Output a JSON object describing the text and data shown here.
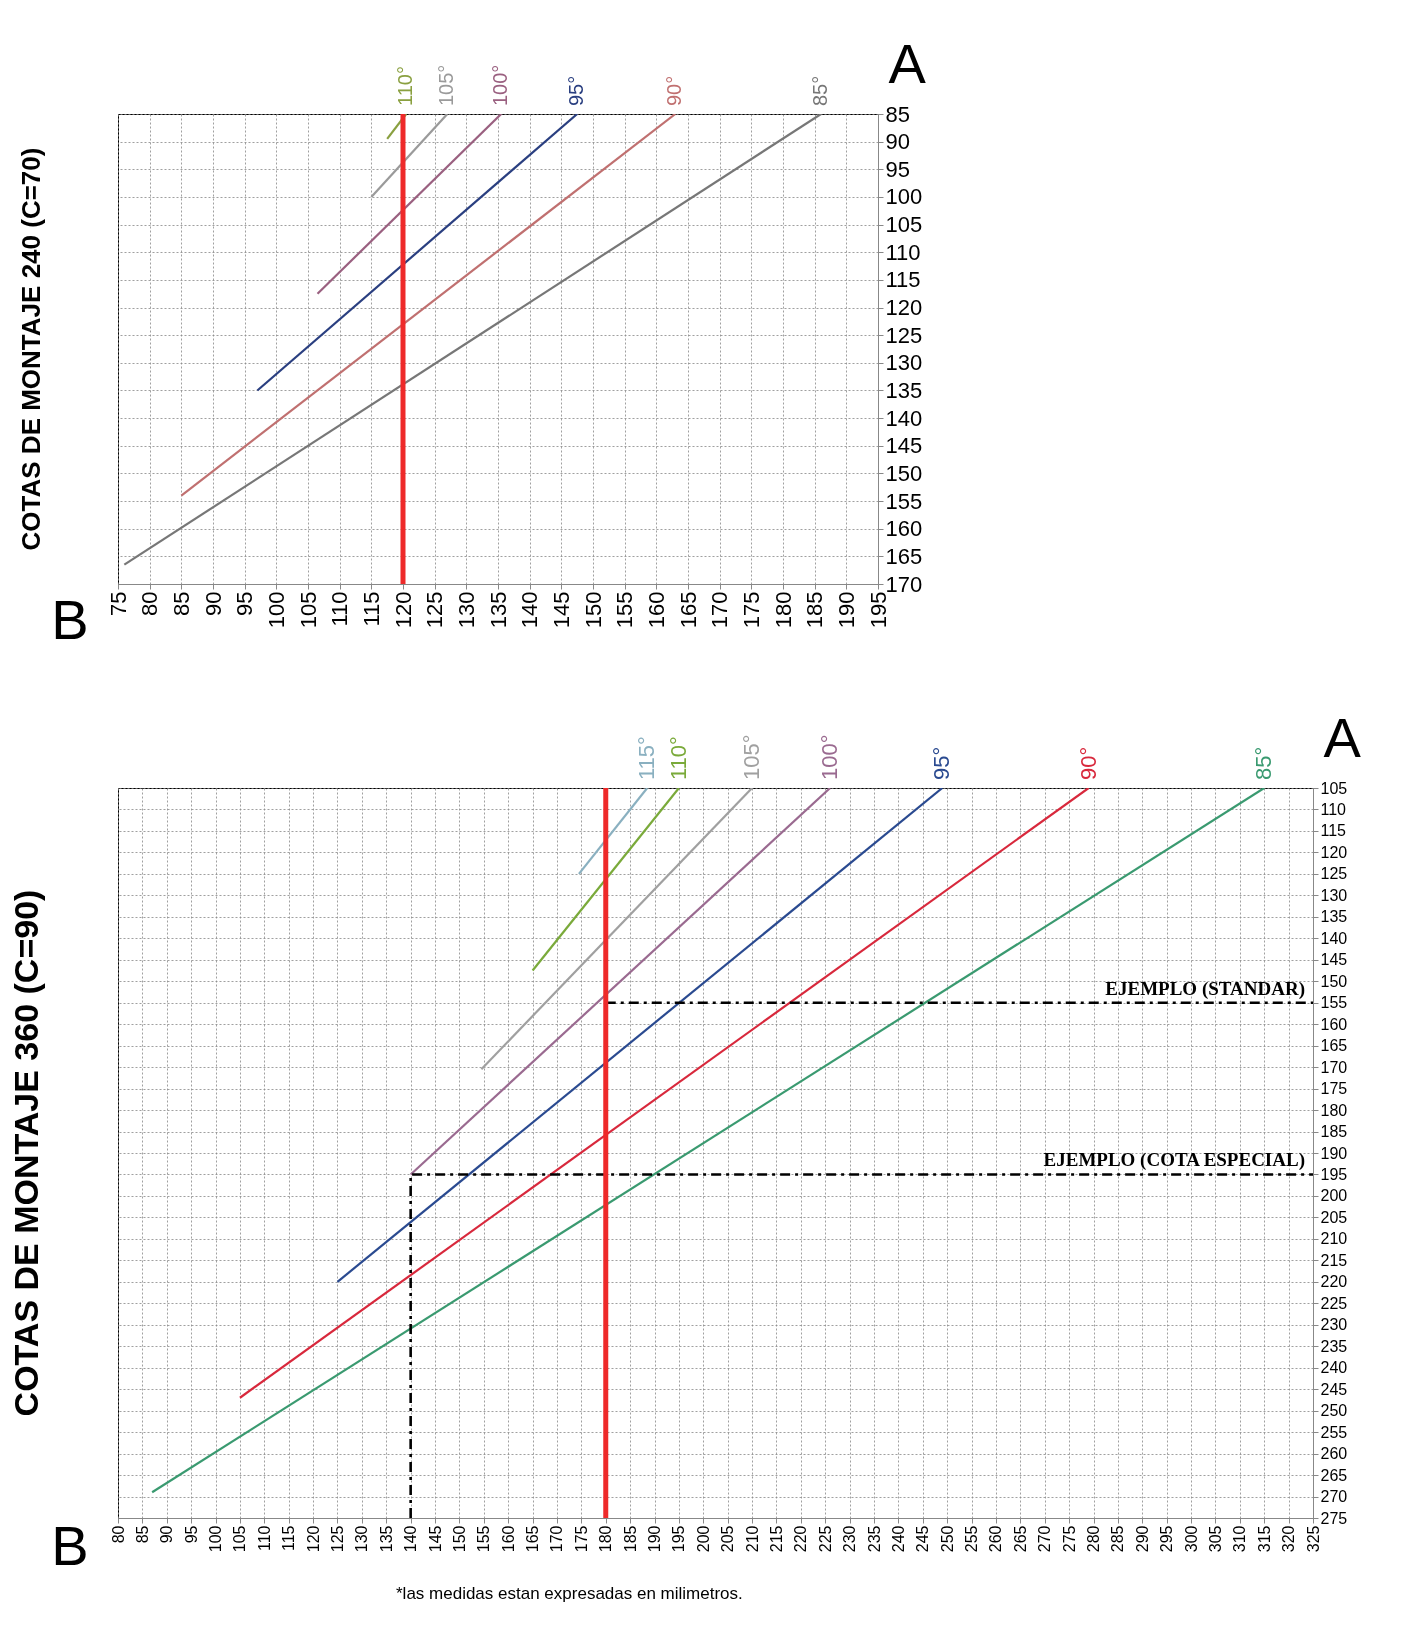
{
  "chart_data": [
    {
      "type": "line",
      "title": "COTAS DE MONTAJE 240 (C=70)",
      "xlabel": "B",
      "ylabel": "A",
      "xlim": [
        75,
        195
      ],
      "ylim": [
        170,
        85
      ],
      "xticks": [
        75,
        80,
        85,
        90,
        95,
        100,
        105,
        110,
        115,
        120,
        125,
        130,
        135,
        140,
        145,
        150,
        155,
        160,
        165,
        170,
        175,
        180,
        185,
        190,
        195
      ],
      "yticks": [
        85,
        90,
        95,
        100,
        105,
        110,
        115,
        120,
        125,
        130,
        135,
        140,
        145,
        150,
        155,
        160,
        165,
        170
      ],
      "grid": true,
      "legend": false,
      "marker": "none",
      "ref_lines": [
        {
          "axis": "x",
          "value": 120,
          "color": "#ee2a2a"
        }
      ],
      "series": [
        {
          "name": "110°",
          "color": "#8aa040",
          "x": [
            117.5,
            120.5
          ],
          "values": [
            89.5,
            85
          ]
        },
        {
          "name": "105°",
          "color": "#9a9a9a",
          "x": [
            115,
            127
          ],
          "values": [
            100,
            85
          ]
        },
        {
          "name": "100°",
          "color": "#9a6080",
          "x": [
            106.5,
            135.5
          ],
          "values": [
            117.5,
            85
          ]
        },
        {
          "name": "95°",
          "color": "#2a3f80",
          "x": [
            97,
            147.5
          ],
          "values": [
            135,
            85
          ]
        },
        {
          "name": "90°",
          "color": "#c07070",
          "x": [
            85,
            163
          ],
          "values": [
            154,
            85
          ]
        },
        {
          "name": "85°",
          "color": "#777777",
          "x": [
            76,
            186
          ],
          "values": [
            166.5,
            85
          ]
        }
      ]
    },
    {
      "type": "line",
      "title": "COTAS DE MONTAJE 360 (C=90)",
      "xlabel": "B",
      "ylabel": "A",
      "xlim": [
        80,
        325
      ],
      "ylim": [
        275,
        105
      ],
      "xticks": [
        80,
        85,
        90,
        95,
        100,
        105,
        110,
        115,
        120,
        125,
        130,
        135,
        140,
        145,
        150,
        155,
        160,
        165,
        170,
        175,
        180,
        185,
        190,
        195,
        200,
        205,
        210,
        215,
        220,
        225,
        230,
        235,
        240,
        245,
        250,
        255,
        260,
        265,
        270,
        275,
        280,
        285,
        290,
        295,
        300,
        305,
        310,
        315,
        320,
        325
      ],
      "yticks": [
        105,
        110,
        115,
        120,
        125,
        130,
        135,
        140,
        145,
        150,
        155,
        160,
        165,
        170,
        175,
        180,
        185,
        190,
        195,
        200,
        205,
        210,
        215,
        220,
        225,
        230,
        235,
        240,
        245,
        250,
        255,
        260,
        265,
        270,
        275
      ],
      "grid": true,
      "legend": false,
      "marker": "none",
      "ref_lines": [
        {
          "axis": "x",
          "value": 180,
          "color": "#ee2a2a"
        }
      ],
      "annotations": [
        "*las medidas estan expresadas en milimetros."
      ],
      "series": [
        {
          "name": "115°",
          "color": "#8ab0c0",
          "x": [
            174.5,
            188.5
          ],
          "values": [
            125,
            105
          ]
        },
        {
          "name": "110°",
          "color": "#7aaa3a",
          "x": [
            165,
            195
          ],
          "values": [
            147.5,
            105
          ]
        },
        {
          "name": "105°",
          "color": "#a0a0a0",
          "x": [
            154.5,
            210
          ],
          "values": [
            170.5,
            105
          ]
        },
        {
          "name": "100°",
          "color": "#9a6a90",
          "x": [
            140,
            226
          ],
          "values": [
            195,
            105
          ]
        },
        {
          "name": "95°",
          "color": "#2a4a90",
          "x": [
            125,
            249
          ],
          "values": [
            220,
            105
          ]
        },
        {
          "name": "90°",
          "color": "#d8283c",
          "x": [
            105,
            279
          ],
          "values": [
            247,
            105
          ]
        },
        {
          "name": "85°",
          "color": "#3a9a70",
          "x": [
            87,
            315
          ],
          "values": [
            269,
            105
          ]
        },
        {
          "name": "EJEMPLO (STANDAR)",
          "color": "#000000",
          "line_style": "dashed",
          "x": [
            180,
            325
          ],
          "values": [
            155,
            155
          ]
        },
        {
          "name": "EJEMPLO (COTA ESPECIAL)",
          "color": "#000000",
          "line_style": "dashed",
          "x": [
            140,
            140,
            325
          ],
          "values": [
            275,
            195,
            195
          ]
        }
      ]
    }
  ]
}
